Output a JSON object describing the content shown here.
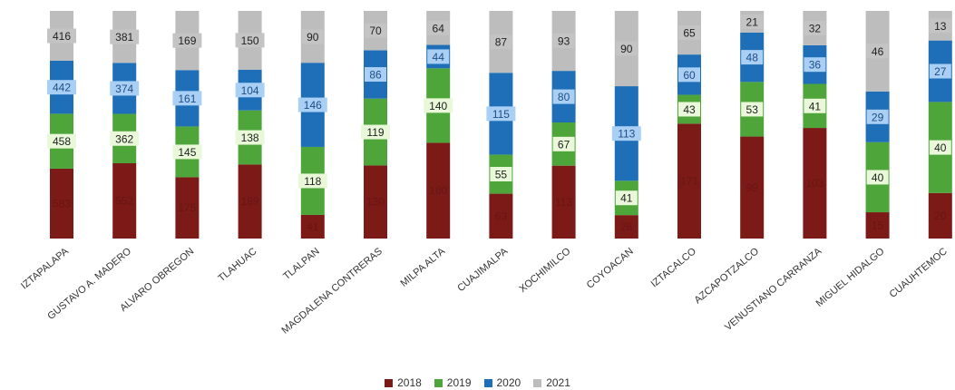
{
  "chart_data": {
    "type": "bar",
    "stacked": true,
    "categories": [
      "IZTAPALAPA",
      "GUSTAVO A. MADERO",
      "ALVARO OBREGON",
      "TLAHUAC",
      "TLALPAN",
      "MAGDALENA CONTRERAS",
      "MILPA ALTA",
      "CUAJIMALPA",
      "XOCHIMILCO",
      "COYOACAN",
      "IZTACALCO",
      "AZCAPOTZALCO",
      "VENUSTIANO CARRANZA",
      "MIGUEL HIDALGO",
      "CUAUHTEMOC"
    ],
    "series": [
      {
        "name": "2018",
        "color": "#7b1a17",
        "values": [
          583,
          552,
          175,
          189,
          41,
          130,
          180,
          63,
          113,
          28,
          171,
          99,
          103,
          15,
          20
        ]
      },
      {
        "name": "2019",
        "color": "#4ea53a",
        "values": [
          458,
          362,
          145,
          138,
          118,
          119,
          140,
          55,
          67,
          41,
          43,
          53,
          41,
          40,
          40
        ]
      },
      {
        "name": "2020",
        "color": "#1f6fb8",
        "values": [
          442,
          374,
          161,
          104,
          146,
          86,
          44,
          115,
          80,
          113,
          60,
          48,
          36,
          29,
          27
        ]
      },
      {
        "name": "2021",
        "color": "#bdbdbd",
        "values": [
          416,
          381,
          169,
          150,
          90,
          70,
          64,
          87,
          93,
          90,
          65,
          21,
          32,
          46,
          13
        ]
      }
    ],
    "normalized": true,
    "legend_position": "bottom",
    "grid": false
  }
}
